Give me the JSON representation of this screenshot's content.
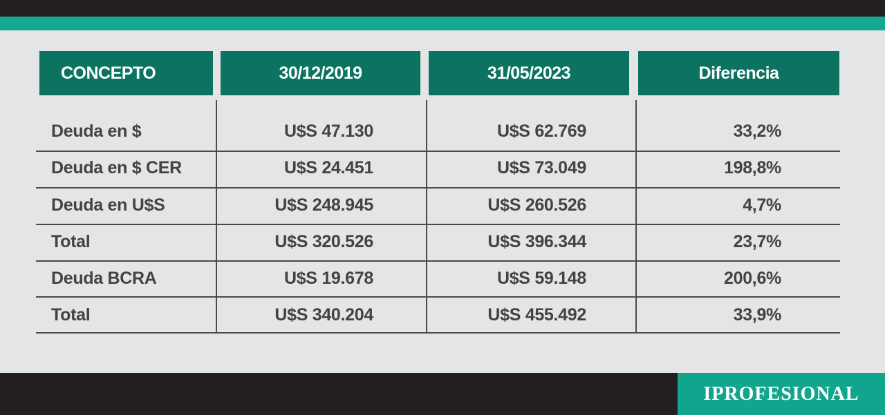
{
  "table": {
    "header": [
      "CONCEPTO",
      "30/12/2019",
      "31/05/2023",
      "Diferencia"
    ],
    "rows": [
      [
        "Deuda en $",
        "U$S 47.130",
        "U$S 62.769",
        "33,2%"
      ],
      [
        "Deuda en $ CER",
        "U$S 24.451",
        "U$S 73.049",
        "198,8%"
      ],
      [
        "Deuda en U$S",
        "U$S 248.945",
        "U$S 260.526",
        "4,7%"
      ],
      [
        "Total",
        "U$S 320.526",
        "U$S 396.344",
        "23,7%"
      ],
      [
        "Deuda BCRA",
        "U$S 19.678",
        "U$S 59.148",
        "200,6%"
      ],
      [
        "Total",
        "U$S 340.204",
        "U$S 455.492",
        "33,9%"
      ]
    ]
  },
  "brand": "IPROFESIONAL"
}
